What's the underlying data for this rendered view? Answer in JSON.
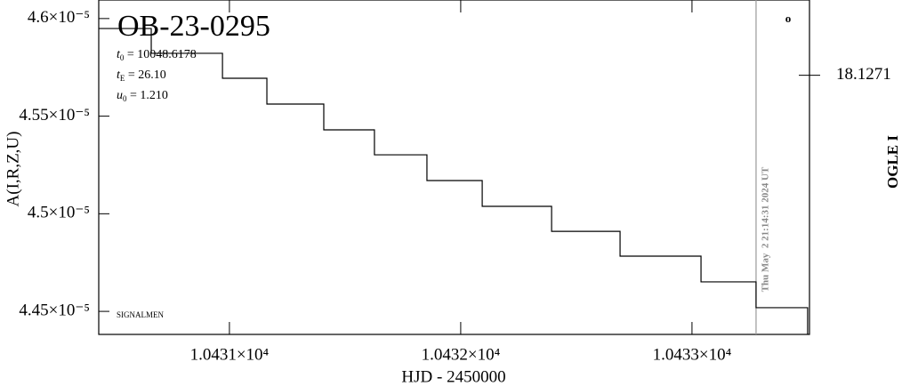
{
  "chart_data": {
    "type": "line",
    "step": true,
    "title": "OB-23-0295",
    "xlabel": "HJD - 2450000",
    "ylabel": "A(I,R,Z,U)",
    "y2label": "OGLE I",
    "annotations": [
      {
        "symbol": "t",
        "sub": "0",
        "text": " = 10048.6178"
      },
      {
        "symbol": "t",
        "sub": "E",
        "text": " = 26.10"
      },
      {
        "symbol": "u",
        "sub": "0",
        "text": " = 1.210"
      }
    ],
    "footer": "SIGNALMEN",
    "timestamp": "Thu May  2 21:14:31 2024 UT",
    "marker": "o",
    "vline_x": 10433.277,
    "color": "#000000",
    "x": [
      10430.435,
      10430.662,
      10430.97,
      10431.162,
      10431.408,
      10431.627,
      10431.854,
      10432.093,
      10432.393,
      10432.689,
      10433.039,
      10433.277,
      10433.5
    ],
    "values": [
      4.5949e-05,
      4.5822e-05,
      4.5694e-05,
      4.5562e-05,
      4.543e-05,
      4.5302e-05,
      4.517e-05,
      4.5038e-05,
      4.491e-05,
      4.4783e-05,
      4.4651e-05,
      4.4519e-05,
      4.4382e-05
    ],
    "xlim": [
      10430.435,
      10433.508
    ],
    "ylim": [
      4.4382e-05,
      4.6095e-05
    ],
    "y2lim": [
      18.12741,
      18.12701
    ],
    "xticks": [
      {
        "value": 10431,
        "label": "1.0431×10⁴"
      },
      {
        "value": 10432,
        "label": "1.0432×10⁴"
      },
      {
        "value": 10433,
        "label": "1.0433×10⁴"
      }
    ],
    "yticks": [
      {
        "value": 4.45e-05,
        "label": "4.45×10⁻⁵"
      },
      {
        "value": 4.5e-05,
        "label": "4.5×10⁻⁵"
      },
      {
        "value": 4.55e-05,
        "label": "4.55×10⁻⁵"
      },
      {
        "value": 4.6e-05,
        "label": "4.6×10⁻⁵"
      }
    ],
    "y2ticks": [
      18.1271
    ]
  }
}
